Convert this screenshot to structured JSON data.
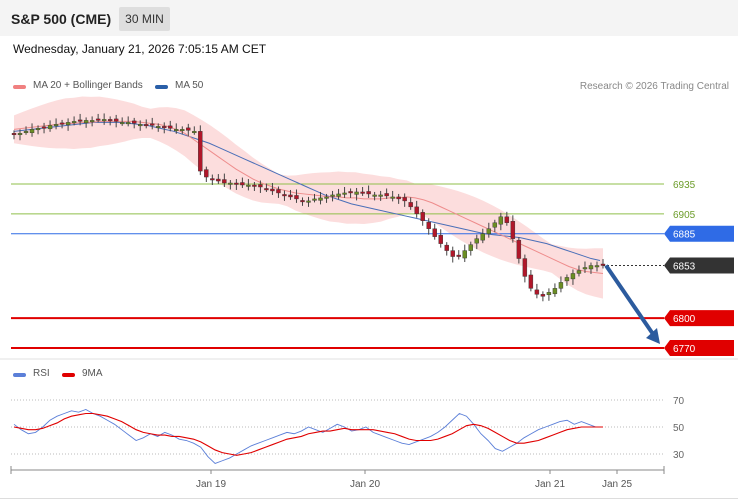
{
  "header": {
    "title": "S&P 500 (CME)",
    "timeframe": "30 MIN"
  },
  "date_line": "Wednesday, January 21, 2026 7:05:15 AM CET",
  "legend": {
    "ma20": {
      "label": "MA 20 + Bollinger Bands",
      "color": "#f08080"
    },
    "ma50": {
      "label": "MA 50",
      "color": "#2a5fa8"
    }
  },
  "credit": "Research © 2026 Trading Central",
  "rsi_legend": {
    "rsi": {
      "label": "RSI",
      "color": "#5b7fd8"
    },
    "ma9": {
      "label": "9MA",
      "color": "#e00000"
    }
  },
  "chart_data": [
    {
      "type": "candlestick",
      "title": "S&P 500 (CME)",
      "ylim": [
        6760,
        6985
      ],
      "x_tick_labels": [
        "Jan 19",
        "Jan 20",
        "Jan 21",
        "Jan 25"
      ],
      "levels": [
        {
          "value": 6935,
          "label": "6935",
          "kind": "resistance",
          "color": "#8fbf4a"
        },
        {
          "value": 6905,
          "label": "6905",
          "kind": "resistance",
          "color": "#8fbf4a"
        },
        {
          "value": 6885,
          "label": "6885",
          "kind": "pivot",
          "color": "#2f6be6"
        },
        {
          "value": 6853,
          "label": "6853",
          "kind": "last",
          "color": "#333333"
        },
        {
          "value": 6800,
          "label": "6800",
          "kind": "support",
          "color": "#e00000"
        },
        {
          "value": 6770,
          "label": "6770",
          "kind": "support",
          "color": "#e00000"
        }
      ],
      "bullish_color": "#6b8e23",
      "bearish_color": "#b0172a",
      "close_path": [
        6985,
        6986,
        6988,
        6990,
        6991,
        6992,
        6994,
        6995,
        6996,
        6997,
        6998,
        6998,
        6999,
        6999,
        7000,
        7000,
        6999,
        6998,
        6997,
        6997,
        6996,
        6995,
        6994,
        6994,
        6993,
        6992,
        6991,
        6990,
        6990,
        6989,
        6988,
        6948,
        6942,
        6940,
        6938,
        6936,
        6936,
        6935,
        6934,
        6934,
        6933,
        6932,
        6930,
        6928,
        6926,
        6924,
        6922,
        6920,
        6918,
        6918,
        6920,
        6921,
        6922,
        6924,
        6925,
        6926,
        6926,
        6927,
        6926,
        6925,
        6924,
        6924,
        6923,
        6922,
        6920,
        6918,
        6912,
        6905,
        6898,
        6890,
        6882,
        6875,
        6868,
        6862,
        6862,
        6868,
        6874,
        6880,
        6885,
        6890,
        6896,
        6902,
        6896,
        6880,
        6860,
        6842,
        6830,
        6824,
        6822,
        6826,
        6830,
        6836,
        6841,
        6845,
        6848,
        6851,
        6853,
        6853,
        6853
      ],
      "forecast_arrow": {
        "from": 6853,
        "to": 6770
      },
      "ma20": [
        6990,
        6991,
        6992,
        6993,
        6994,
        6995,
        6996,
        6996,
        6997,
        6997,
        6998,
        6998,
        6998,
        6998,
        6998,
        6997,
        6996,
        6995,
        6993,
        6990,
        6986,
        6980,
        6974,
        6968,
        6962,
        6956,
        6950,
        6945,
        6940,
        6936,
        6933,
        6930,
        6928,
        6926,
        6925,
        6924,
        6923,
        6922,
        6922,
        6921,
        6921,
        6920,
        6920,
        6920,
        6921,
        6921,
        6922,
        6921,
        6919,
        6916,
        6912,
        6908,
        6904,
        6900,
        6896,
        6892,
        6888,
        6884,
        6880,
        6876,
        6872,
        6868,
        6864,
        6860,
        6856,
        6852,
        6849,
        6847,
        6846,
        6845
      ],
      "ma50": [
        6988,
        6989,
        6990,
        6991,
        6992,
        6993,
        6994,
        6995,
        6996,
        6997,
        6997,
        6997,
        6997,
        6996,
        6995,
        6994,
        6992,
        6990,
        6988,
        6985,
        6982,
        6979,
        6976,
        6972,
        6968,
        6964,
        6960,
        6956,
        6952,
        6948,
        6944,
        6940,
        6936,
        6932,
        6928,
        6924,
        6921,
        6918,
        6915,
        6913,
        6911,
        6909,
        6907,
        6905,
        6903,
        6901,
        6899,
        6897,
        6895,
        6893,
        6891,
        6889,
        6887,
        6885,
        6884,
        6883,
        6882,
        6881,
        6879,
        6877,
        6875,
        6872,
        6869,
        6866,
        6863,
        6860,
        6858
      ]
    },
    {
      "type": "line",
      "title": "RSI",
      "ylim": [
        20,
        80
      ],
      "y_ticks": [
        70,
        50,
        30
      ],
      "series": [
        {
          "name": "RSI",
          "color": "#5b7fd8",
          "values": [
            52,
            48,
            45,
            46,
            50,
            55,
            58,
            60,
            62,
            61,
            63,
            60,
            58,
            55,
            52,
            48,
            44,
            40,
            42,
            45,
            43,
            46,
            44,
            41,
            40,
            38,
            35,
            28,
            23,
            25,
            27,
            30,
            33,
            36,
            38,
            40,
            42,
            44,
            46,
            45,
            47,
            50,
            48,
            46,
            49,
            52,
            50,
            47,
            48,
            50,
            46,
            44,
            42,
            40,
            38,
            37,
            39,
            41,
            43,
            46,
            50,
            55,
            60,
            58,
            52,
            45,
            40,
            34,
            32,
            35,
            38,
            42,
            45,
            48,
            50,
            52,
            54,
            55,
            52,
            54,
            52,
            50,
            50
          ]
        },
        {
          "name": "9MA",
          "color": "#e00000",
          "values": [
            50,
            49,
            48,
            48,
            49,
            51,
            53,
            56,
            58,
            59,
            60,
            60,
            59,
            58,
            56,
            54,
            51,
            48,
            46,
            45,
            44,
            44,
            43,
            43,
            42,
            41,
            39,
            36,
            33,
            31,
            30,
            29,
            30,
            31,
            33,
            35,
            37,
            39,
            41,
            42,
            43,
            45,
            46,
            47,
            47,
            48,
            49,
            48,
            48,
            48,
            48,
            47,
            46,
            45,
            43,
            41,
            40,
            40,
            40,
            41,
            43,
            45,
            48,
            51,
            52,
            51,
            49,
            46,
            43,
            40,
            38,
            38,
            39,
            40,
            42,
            44,
            46,
            48,
            49,
            50,
            50,
            50,
            50
          ]
        }
      ]
    }
  ]
}
